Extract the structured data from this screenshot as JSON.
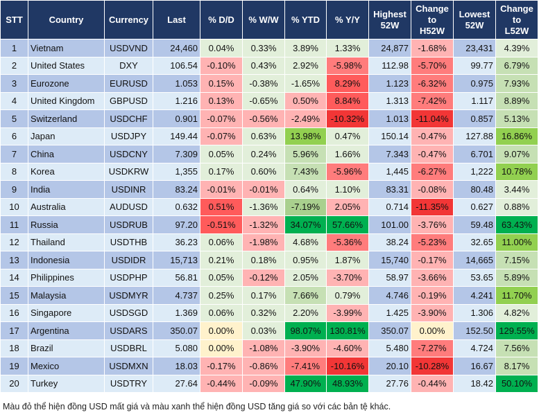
{
  "chart_data": {
    "type": "table",
    "headers": [
      "STT",
      "Country",
      "Currency",
      "Last",
      "% D/D",
      "% W/W",
      "% YTD",
      "% Y/Y",
      "Highest 52W",
      "Change to H52W",
      "Lowest 52W",
      "Change to L52W"
    ],
    "palette": {
      "row_odd": "#b4c6e7",
      "row_even": "#ddebf7",
      "header": "#203864",
      "lg": "#e2efda",
      "g2": "#c6e0b4",
      "g3": "#a9d08e",
      "g4": "#92d050",
      "g5": "#00b050",
      "r1": "#ffb3b3",
      "r2": "#ff7c7c",
      "r3": "#ff5b5b",
      "r4": "#f23636",
      "y": "#fff2cc"
    },
    "rows": [
      {
        "stt": "1",
        "country": "Vietnam",
        "currency": "USDVND",
        "last": "24,460",
        "dd": [
          "0.04%",
          "lg"
        ],
        "ww": [
          "0.33%",
          "lg"
        ],
        "ytd": [
          "3.89%",
          "lg"
        ],
        "yy": [
          "1.33%",
          "lg"
        ],
        "high": "24,877",
        "chg_h": [
          "-1.68%",
          "r1"
        ],
        "low": "23,431",
        "chg_l": [
          "4.39%",
          "lg"
        ]
      },
      {
        "stt": "2",
        "country": "United States",
        "currency": "DXY",
        "last": "106.54",
        "dd": [
          "-0.10%",
          "r1"
        ],
        "ww": [
          "0.43%",
          "lg"
        ],
        "ytd": [
          "2.92%",
          "lg"
        ],
        "yy": [
          "-5.98%",
          "r2"
        ],
        "high": "112.98",
        "chg_h": [
          "-5.70%",
          "r2"
        ],
        "low": "99.77",
        "chg_l": [
          "6.79%",
          "g2"
        ]
      },
      {
        "stt": "3",
        "country": "Eurozone",
        "currency": "EURUSD",
        "last": "1.053",
        "dd": [
          "0.15%",
          "r1"
        ],
        "ww": [
          "-0.38%",
          "lg"
        ],
        "ytd": [
          "-1.65%",
          "lg"
        ],
        "yy": [
          "8.29%",
          "r3"
        ],
        "high": "1.123",
        "chg_h": [
          "-6.32%",
          "r2"
        ],
        "low": "0.975",
        "chg_l": [
          "7.93%",
          "g2"
        ]
      },
      {
        "stt": "4",
        "country": "United Kingdom",
        "currency": "GBPUSD",
        "last": "1.216",
        "dd": [
          "0.13%",
          "r1"
        ],
        "ww": [
          "-0.65%",
          "lg"
        ],
        "ytd": [
          "0.50%",
          "r1"
        ],
        "yy": [
          "8.84%",
          "r3"
        ],
        "high": "1.313",
        "chg_h": [
          "-7.42%",
          "r2"
        ],
        "low": "1.117",
        "chg_l": [
          "8.89%",
          "g2"
        ]
      },
      {
        "stt": "5",
        "country": "Switzerland",
        "currency": "USDCHF",
        "last": "0.901",
        "dd": [
          "-0.07%",
          "r1"
        ],
        "ww": [
          "-0.56%",
          "r1"
        ],
        "ytd": [
          "-2.49%",
          "r1"
        ],
        "yy": [
          "-10.32%",
          "r4"
        ],
        "high": "1.013",
        "chg_h": [
          "-11.04%",
          "r4"
        ],
        "low": "0.857",
        "chg_l": [
          "5.13%",
          "g2"
        ]
      },
      {
        "stt": "6",
        "country": "Japan",
        "currency": "USDJPY",
        "last": "149.44",
        "dd": [
          "-0.07%",
          "r1"
        ],
        "ww": [
          "0.63%",
          "lg"
        ],
        "ytd": [
          "13.98%",
          "g4"
        ],
        "yy": [
          "0.47%",
          "lg"
        ],
        "high": "150.14",
        "chg_h": [
          "-0.47%",
          "r1"
        ],
        "low": "127.88",
        "chg_l": [
          "16.86%",
          "g4"
        ]
      },
      {
        "stt": "7",
        "country": "China",
        "currency": "USDCNY",
        "last": "7.309",
        "dd": [
          "0.05%",
          "lg"
        ],
        "ww": [
          "0.24%",
          "lg"
        ],
        "ytd": [
          "5.96%",
          "g2"
        ],
        "yy": [
          "1.66%",
          "lg"
        ],
        "high": "7.343",
        "chg_h": [
          "-0.47%",
          "r1"
        ],
        "low": "6.701",
        "chg_l": [
          "9.07%",
          "g2"
        ]
      },
      {
        "stt": "8",
        "country": "Korea",
        "currency": "USDKRW",
        "last": "1,355",
        "dd": [
          "0.17%",
          "lg"
        ],
        "ww": [
          "0.60%",
          "lg"
        ],
        "ytd": [
          "7.43%",
          "g2"
        ],
        "yy": [
          "-5.96%",
          "r2"
        ],
        "high": "1,445",
        "chg_h": [
          "-6.27%",
          "r2"
        ],
        "low": "1,222",
        "chg_l": [
          "10.78%",
          "g4"
        ]
      },
      {
        "stt": "9",
        "country": "India",
        "currency": "USDINR",
        "last": "83.24",
        "dd": [
          "-0.01%",
          "r1"
        ],
        "ww": [
          "-0.01%",
          "r1"
        ],
        "ytd": [
          "0.64%",
          "lg"
        ],
        "yy": [
          "1.10%",
          "lg"
        ],
        "high": "83.31",
        "chg_h": [
          "-0.08%",
          "r1"
        ],
        "low": "80.48",
        "chg_l": [
          "3.44%",
          "lg"
        ]
      },
      {
        "stt": "10",
        "country": "Australia",
        "currency": "AUDUSD",
        "last": "0.632",
        "dd": [
          "0.51%",
          "r3"
        ],
        "ww": [
          "-1.36%",
          "lg"
        ],
        "ytd": [
          "-7.19%",
          "g3"
        ],
        "yy": [
          "2.05%",
          "r1"
        ],
        "high": "0.714",
        "chg_h": [
          "-11.35%",
          "r4"
        ],
        "low": "0.627",
        "chg_l": [
          "0.88%",
          "lg"
        ]
      },
      {
        "stt": "11",
        "country": "Russia",
        "currency": "USDRUB",
        "last": "97.20",
        "dd": [
          "-0.51%",
          "r3"
        ],
        "ww": [
          "-1.32%",
          "r1"
        ],
        "ytd": [
          "34.07%",
          "g5"
        ],
        "yy": [
          "57.66%",
          "g5"
        ],
        "high": "101.00",
        "chg_h": [
          "-3.76%",
          "r1"
        ],
        "low": "59.48",
        "chg_l": [
          "63.43%",
          "g5"
        ]
      },
      {
        "stt": "12",
        "country": "Thailand",
        "currency": "USDTHB",
        "last": "36.23",
        "dd": [
          "0.06%",
          "lg"
        ],
        "ww": [
          "-1.98%",
          "r1"
        ],
        "ytd": [
          "4.68%",
          "lg"
        ],
        "yy": [
          "-5.36%",
          "r2"
        ],
        "high": "38.24",
        "chg_h": [
          "-5.23%",
          "r2"
        ],
        "low": "32.65",
        "chg_l": [
          "11.00%",
          "g4"
        ]
      },
      {
        "stt": "13",
        "country": "Indonesia",
        "currency": "USDIDR",
        "last": "15,713",
        "dd": [
          "0.21%",
          "lg"
        ],
        "ww": [
          "0.18%",
          "lg"
        ],
        "ytd": [
          "0.95%",
          "lg"
        ],
        "yy": [
          "1.87%",
          "lg"
        ],
        "high": "15,740",
        "chg_h": [
          "-0.17%",
          "r1"
        ],
        "low": "14,665",
        "chg_l": [
          "7.15%",
          "g2"
        ]
      },
      {
        "stt": "14",
        "country": "Philippines",
        "currency": "USDPHP",
        "last": "56.81",
        "dd": [
          "0.05%",
          "lg"
        ],
        "ww": [
          "-0.12%",
          "r1"
        ],
        "ytd": [
          "2.05%",
          "lg"
        ],
        "yy": [
          "-3.70%",
          "r1"
        ],
        "high": "58.97",
        "chg_h": [
          "-3.66%",
          "r1"
        ],
        "low": "53.65",
        "chg_l": [
          "5.89%",
          "g2"
        ]
      },
      {
        "stt": "15",
        "country": "Malaysia",
        "currency": "USDMYR",
        "last": "4.737",
        "dd": [
          "0.25%",
          "lg"
        ],
        "ww": [
          "0.17%",
          "lg"
        ],
        "ytd": [
          "7.66%",
          "g2"
        ],
        "yy": [
          "0.79%",
          "lg"
        ],
        "high": "4.746",
        "chg_h": [
          "-0.19%",
          "r1"
        ],
        "low": "4.241",
        "chg_l": [
          "11.70%",
          "g4"
        ]
      },
      {
        "stt": "16",
        "country": "Singapore",
        "currency": "USDSGD",
        "last": "1.369",
        "dd": [
          "0.06%",
          "lg"
        ],
        "ww": [
          "0.32%",
          "lg"
        ],
        "ytd": [
          "2.20%",
          "lg"
        ],
        "yy": [
          "-3.99%",
          "r1"
        ],
        "high": "1.425",
        "chg_h": [
          "-3.90%",
          "r1"
        ],
        "low": "1.306",
        "chg_l": [
          "4.82%",
          "lg"
        ]
      },
      {
        "stt": "17",
        "country": "Argentina",
        "currency": "USDARS",
        "last": "350.07",
        "dd": [
          "0.00%",
          "y"
        ],
        "ww": [
          "0.03%",
          "lg"
        ],
        "ytd": [
          "98.07%",
          "g5"
        ],
        "yy": [
          "130.81%",
          "g5"
        ],
        "high": "350.07",
        "chg_h": [
          "0.00%",
          "y"
        ],
        "low": "152.50",
        "chg_l": [
          "129.55%",
          "g5"
        ]
      },
      {
        "stt": "18",
        "country": "Brazil",
        "currency": "USDBRL",
        "last": "5.080",
        "dd": [
          "0.00%",
          "y"
        ],
        "ww": [
          "-1.08%",
          "r1"
        ],
        "ytd": [
          "-3.90%",
          "r1"
        ],
        "yy": [
          "-4.60%",
          "r1"
        ],
        "high": "5.480",
        "chg_h": [
          "-7.27%",
          "r2"
        ],
        "low": "4.724",
        "chg_l": [
          "7.56%",
          "g2"
        ]
      },
      {
        "stt": "19",
        "country": "Mexico",
        "currency": "USDMXN",
        "last": "18.03",
        "dd": [
          "-0.17%",
          "r1"
        ],
        "ww": [
          "-0.86%",
          "r1"
        ],
        "ytd": [
          "-7.41%",
          "r2"
        ],
        "yy": [
          "-10.16%",
          "r4"
        ],
        "high": "20.10",
        "chg_h": [
          "-10.28%",
          "r4"
        ],
        "low": "16.67",
        "chg_l": [
          "8.17%",
          "g2"
        ]
      },
      {
        "stt": "20",
        "country": "Turkey",
        "currency": "USDTRY",
        "last": "27.64",
        "dd": [
          "-0.44%",
          "r1"
        ],
        "ww": [
          "-0.09%",
          "r1"
        ],
        "ytd": [
          "47.90%",
          "g5"
        ],
        "yy": [
          "48.93%",
          "g5"
        ],
        "high": "27.76",
        "chg_h": [
          "-0.44%",
          "r1"
        ],
        "low": "18.42",
        "chg_l": [
          "50.10%",
          "g5"
        ]
      }
    ],
    "footnote": "Màu đỏ thể hiện đồng USD mất giá và màu xanh thể hiện đồng USD tăng giá so với các bản tệ khác."
  }
}
